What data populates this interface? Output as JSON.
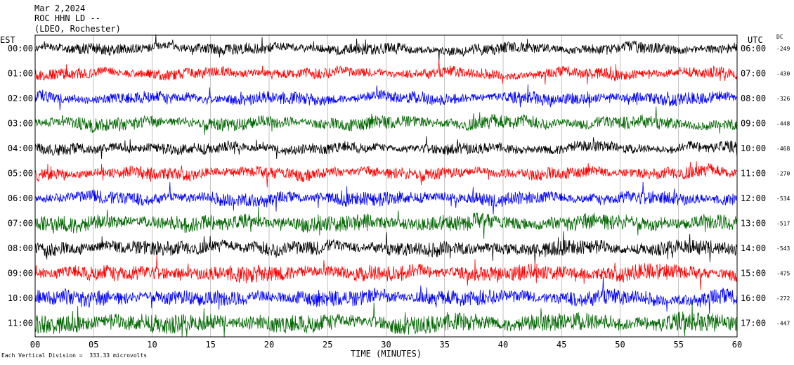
{
  "header": {
    "date": "Mar 2,2024",
    "station": "ROC HHN LD --",
    "network": "(LDEO, Rochester)"
  },
  "left_timezone": "EST",
  "right_timezone": "UTC",
  "dc_label": "DC",
  "footer_note": "Each Vertical Division =  333.33 microvolts",
  "colors": {
    "black": "#000000",
    "red": "#ff0000",
    "blue": "#0000ff",
    "green": "#006600",
    "grid": "#999999"
  },
  "chart_data": {
    "type": "line",
    "xlabel": "TIME (MINUTES)",
    "xlim": [
      0,
      60
    ],
    "x_ticks": [
      "00",
      "05",
      "10",
      "15",
      "20",
      "25",
      "30",
      "35",
      "40",
      "45",
      "50",
      "55",
      "60"
    ],
    "traces": [
      {
        "left_label": "00:00",
        "right_label": "06:00",
        "dc": "-249",
        "color": "black",
        "amplitude": 0.45
      },
      {
        "left_label": "01:00",
        "right_label": "07:00",
        "dc": "-430",
        "color": "red",
        "amplitude": 0.45
      },
      {
        "left_label": "02:00",
        "right_label": "08:00",
        "dc": "-326",
        "color": "blue",
        "amplitude": 0.5
      },
      {
        "left_label": "03:00",
        "right_label": "09:00",
        "dc": "-448",
        "color": "green",
        "amplitude": 0.55
      },
      {
        "left_label": "04:00",
        "right_label": "10:00",
        "dc": "-468",
        "color": "black",
        "amplitude": 0.45
      },
      {
        "left_label": "05:00",
        "right_label": "11:00",
        "dc": "-270",
        "color": "red",
        "amplitude": 0.5
      },
      {
        "left_label": "06:00",
        "right_label": "12:00",
        "dc": "-534",
        "color": "blue",
        "amplitude": 0.55
      },
      {
        "left_label": "07:00",
        "right_label": "13:00",
        "dc": "-517",
        "color": "green",
        "amplitude": 0.65
      },
      {
        "left_label": "08:00",
        "right_label": "14:00",
        "dc": "-543",
        "color": "black",
        "amplitude": 0.6
      },
      {
        "left_label": "09:00",
        "right_label": "15:00",
        "dc": "-475",
        "color": "red",
        "amplitude": 0.65
      },
      {
        "left_label": "10:00",
        "right_label": "16:00",
        "dc": "-272",
        "color": "blue",
        "amplitude": 0.65
      },
      {
        "left_label": "11:00",
        "right_label": "17:00",
        "dc": "-447",
        "color": "green",
        "amplitude": 0.75
      }
    ]
  }
}
